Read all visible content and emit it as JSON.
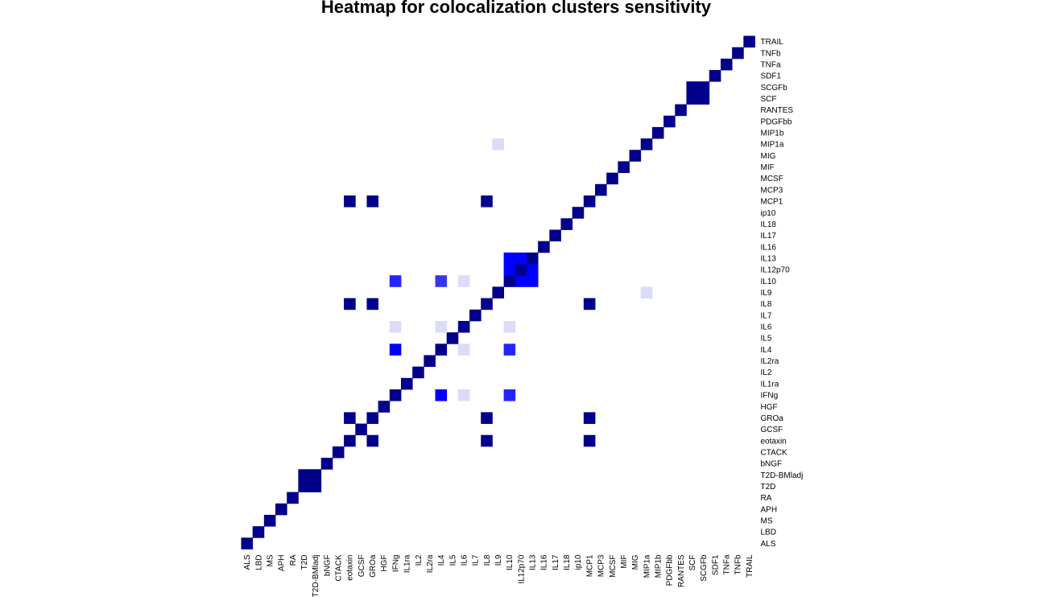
{
  "chart_data": {
    "type": "heatmap",
    "title": "Heatmap for colocalization clusters sensitivity",
    "xlabel": "",
    "ylabel": "",
    "categories": [
      "ALS",
      "LBD",
      "MS",
      "APH",
      "RA",
      "T2D",
      "T2D-BMladj",
      "bNGF",
      "CTACK",
      "eotaxin",
      "GCSF",
      "GROa",
      "HGF",
      "IFNg",
      "IL1ra",
      "IL2",
      "IL2ra",
      "IL4",
      "IL5",
      "IL6",
      "IL7",
      "IL8",
      "IL9",
      "IL10",
      "IL12p70",
      "IL13",
      "IL16",
      "IL17",
      "IL18",
      "ip10",
      "MCP1",
      "MCP3",
      "MCSF",
      "MIF",
      "MIG",
      "MIP1a",
      "MIP1b",
      "PDGFbb",
      "RANTES",
      "SCF",
      "SCGFb",
      "SDF1",
      "TNFa",
      "TNFb",
      "TRAIL"
    ],
    "x_order": "left-to-right",
    "y_order": "bottom-to-top",
    "grid": false,
    "legend": "none",
    "colors": {
      "1.0": "#00008B",
      "0.9": "#0000FF",
      "0.8": "#2424FF",
      "0.75": "#3535F0",
      "0.15": "#DCDCF8"
    },
    "cells": [
      [
        0,
        0,
        1.0
      ],
      [
        1,
        1,
        1.0
      ],
      [
        2,
        2,
        1.0
      ],
      [
        3,
        3,
        1.0
      ],
      [
        4,
        4,
        1.0
      ],
      [
        5,
        5,
        1.0
      ],
      [
        5,
        6,
        1.0
      ],
      [
        6,
        5,
        1.0
      ],
      [
        6,
        6,
        1.0
      ],
      [
        7,
        7,
        1.0
      ],
      [
        8,
        8,
        1.0
      ],
      [
        9,
        9,
        1.0
      ],
      [
        9,
        11,
        1.0
      ],
      [
        9,
        21,
        1.0
      ],
      [
        9,
        30,
        1.0
      ],
      [
        10,
        10,
        1.0
      ],
      [
        11,
        9,
        1.0
      ],
      [
        11,
        11,
        1.0
      ],
      [
        11,
        21,
        1.0
      ],
      [
        11,
        30,
        1.0
      ],
      [
        12,
        12,
        1.0
      ],
      [
        13,
        13,
        1.0
      ],
      [
        13,
        17,
        0.9
      ],
      [
        13,
        19,
        0.15
      ],
      [
        13,
        23,
        0.8
      ],
      [
        14,
        14,
        1.0
      ],
      [
        15,
        15,
        1.0
      ],
      [
        16,
        16,
        1.0
      ],
      [
        17,
        13,
        0.9
      ],
      [
        17,
        17,
        1.0
      ],
      [
        17,
        19,
        0.15
      ],
      [
        17,
        23,
        0.8
      ],
      [
        18,
        18,
        1.0
      ],
      [
        19,
        13,
        0.15
      ],
      [
        19,
        17,
        0.15
      ],
      [
        19,
        19,
        1.0
      ],
      [
        19,
        23,
        0.15
      ],
      [
        20,
        20,
        1.0
      ],
      [
        21,
        9,
        1.0
      ],
      [
        21,
        11,
        1.0
      ],
      [
        21,
        21,
        1.0
      ],
      [
        21,
        30,
        1.0
      ],
      [
        22,
        22,
        1.0
      ],
      [
        22,
        35,
        0.15
      ],
      [
        23,
        13,
        0.8
      ],
      [
        23,
        17,
        0.75
      ],
      [
        23,
        19,
        0.15
      ],
      [
        23,
        23,
        1.0
      ],
      [
        23,
        24,
        0.9
      ],
      [
        23,
        25,
        0.9
      ],
      [
        24,
        23,
        0.9
      ],
      [
        24,
        24,
        1.0
      ],
      [
        24,
        25,
        0.9
      ],
      [
        25,
        23,
        0.9
      ],
      [
        25,
        24,
        0.9
      ],
      [
        25,
        25,
        1.0
      ],
      [
        26,
        26,
        1.0
      ],
      [
        27,
        27,
        1.0
      ],
      [
        28,
        28,
        1.0
      ],
      [
        29,
        29,
        1.0
      ],
      [
        30,
        9,
        1.0
      ],
      [
        30,
        11,
        1.0
      ],
      [
        30,
        21,
        1.0
      ],
      [
        30,
        30,
        1.0
      ],
      [
        31,
        31,
        1.0
      ],
      [
        32,
        32,
        1.0
      ],
      [
        33,
        33,
        1.0
      ],
      [
        34,
        34,
        1.0
      ],
      [
        35,
        22,
        0.15
      ],
      [
        35,
        35,
        1.0
      ],
      [
        36,
        36,
        1.0
      ],
      [
        37,
        37,
        1.0
      ],
      [
        38,
        38,
        1.0
      ],
      [
        39,
        39,
        1.0
      ],
      [
        39,
        40,
        1.0
      ],
      [
        40,
        39,
        1.0
      ],
      [
        40,
        40,
        1.0
      ],
      [
        41,
        41,
        1.0
      ],
      [
        42,
        42,
        1.0
      ],
      [
        43,
        43,
        1.0
      ],
      [
        44,
        44,
        1.0
      ]
    ]
  }
}
